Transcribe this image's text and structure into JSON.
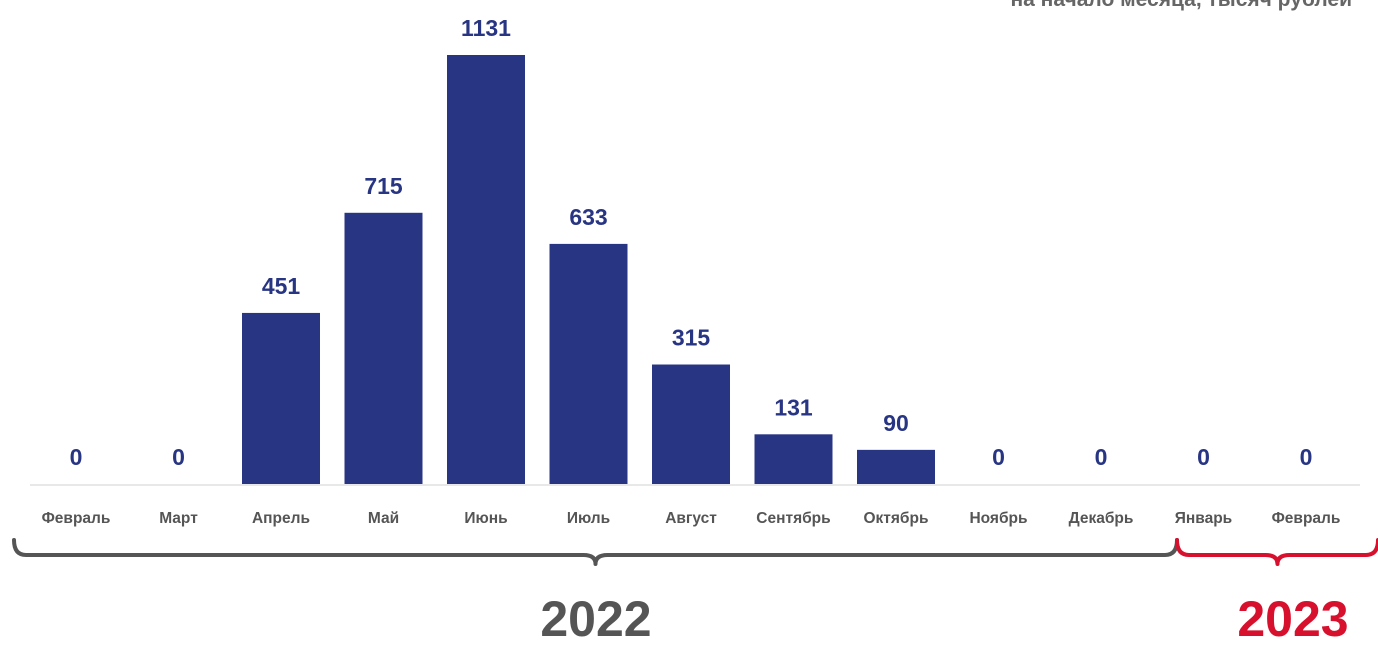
{
  "chart_data": {
    "type": "bar",
    "subtitle": "на начало месяца, тысяч рублей",
    "categories": [
      "Февраль",
      "Март",
      "Апрель",
      "Май",
      "Июнь",
      "Июль",
      "Август",
      "Сентябрь",
      "Октябрь",
      "Ноябрь",
      "Декабрь",
      "Январь",
      "Февраль"
    ],
    "values": [
      0,
      0,
      451,
      715,
      1131,
      633,
      315,
      131,
      90,
      0,
      0,
      0,
      0
    ],
    "data_labels": [
      "0",
      "0",
      "451",
      "715",
      "1131",
      "633",
      "315",
      "131",
      "90",
      "0",
      "0",
      "0",
      "0"
    ],
    "ylim": [
      0,
      1131
    ],
    "groups": [
      {
        "label": "2022",
        "from": 0,
        "to": 10
      },
      {
        "label": "2023",
        "from": 11,
        "to": 12
      }
    ],
    "grid": false,
    "colors": {
      "bar": "#283583",
      "value_label": "#283583",
      "category_label": "#555555",
      "group_2022": "#555555",
      "group_2023": "#d7102e",
      "axis": "#d0d0d0"
    }
  }
}
